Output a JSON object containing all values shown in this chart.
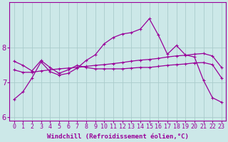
{
  "xlabel": "Windchill (Refroidissement éolien,°C)",
  "bg_color": "#cce8e8",
  "line_color": "#990099",
  "grid_color": "#aacccc",
  "x_values": [
    0,
    1,
    2,
    3,
    4,
    5,
    6,
    7,
    8,
    9,
    10,
    11,
    12,
    13,
    14,
    15,
    16,
    17,
    18,
    19,
    20,
    21,
    22,
    23
  ],
  "line1": [
    6.5,
    6.72,
    7.12,
    7.58,
    7.3,
    7.2,
    7.25,
    7.4,
    7.62,
    7.78,
    8.1,
    8.28,
    8.38,
    8.42,
    8.52,
    8.82,
    8.35,
    7.8,
    8.05,
    7.78,
    7.72,
    7.05,
    6.55,
    6.42
  ],
  "line2": [
    7.35,
    7.28,
    7.28,
    7.32,
    7.35,
    7.38,
    7.4,
    7.42,
    7.45,
    7.48,
    7.5,
    7.53,
    7.56,
    7.6,
    7.63,
    7.65,
    7.68,
    7.72,
    7.75,
    7.77,
    7.8,
    7.82,
    7.75,
    7.42
  ],
  "line3": [
    7.6,
    7.48,
    7.32,
    7.62,
    7.42,
    7.25,
    7.35,
    7.48,
    7.42,
    7.38,
    7.38,
    7.38,
    7.38,
    7.4,
    7.42,
    7.42,
    7.45,
    7.48,
    7.5,
    7.52,
    7.55,
    7.56,
    7.5,
    7.12
  ],
  "ylim": [
    5.9,
    9.3
  ],
  "xlim": [
    -0.5,
    23.5
  ],
  "yticks": [
    6,
    7,
    8
  ],
  "xticks": [
    0,
    1,
    2,
    3,
    4,
    5,
    6,
    7,
    8,
    9,
    10,
    11,
    12,
    13,
    14,
    15,
    16,
    17,
    18,
    19,
    20,
    21,
    22,
    23
  ],
  "markersize": 3,
  "linewidth": 0.9,
  "fontsize_label": 6.5,
  "fontsize_tick": 6.0
}
